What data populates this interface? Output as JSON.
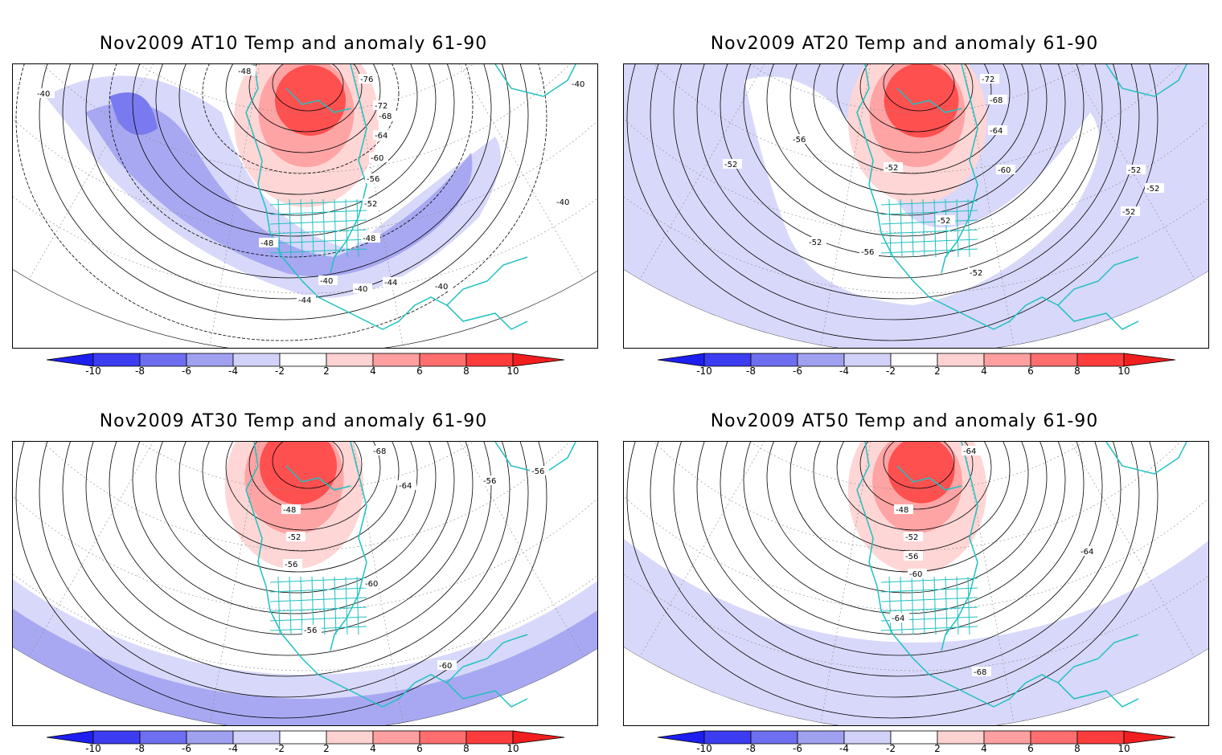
{
  "panels": [
    {
      "title": "Nov2009 AT10 Temp and anomaly 61-90",
      "contour_labels": [
        "-40",
        "-40",
        "-48",
        "-76",
        "-72",
        "-68",
        "-64",
        "-60",
        "-56",
        "-52",
        "-48",
        "-48",
        "-40",
        "-40",
        "-44",
        "-44",
        "-40",
        "-40"
      ]
    },
    {
      "title": "Nov2009 AT20 Temp and anomaly 61-90",
      "contour_labels": [
        "-52",
        "-72",
        "-68",
        "-64",
        "-56",
        "-52",
        "-52",
        "-60",
        "-52",
        "-52",
        "-56",
        "-52",
        "-52",
        "-52"
      ]
    },
    {
      "title": "Nov2009 AT30 Temp and anomaly 61-90",
      "contour_labels": [
        "-68",
        "-56",
        "-64",
        "-56",
        "-48",
        "-52",
        "-56",
        "-60",
        "-56",
        "-60"
      ]
    },
    {
      "title": "Nov2009 AT50 Temp and anomaly 61-90",
      "contour_labels": [
        "-64",
        "-48",
        "-52",
        "-56",
        "-60",
        "-64",
        "-64",
        "-68"
      ]
    }
  ],
  "colorbar": {
    "ticks": [
      "-10",
      "-8",
      "-6",
      "-4",
      "-2",
      "2",
      "4",
      "6",
      "8",
      "10"
    ],
    "colors": [
      "#1e1ef0",
      "#3c3cf0",
      "#6e6ef0",
      "#a0a0f0",
      "#d2d2f8",
      "#ffffff",
      "#ffd2d2",
      "#ffa0a0",
      "#ff6e6e",
      "#ff3c3c",
      "#f01e1e"
    ]
  },
  "colors": {
    "coast": "#20c0c0",
    "neg_light": "#d8d8fa",
    "neg_mid": "#a8a8f2",
    "neg_strong": "#7a7af0",
    "pos_light": "#ffd6d6",
    "pos_mid": "#ffa4a4",
    "pos_strong": "#ff5050"
  }
}
